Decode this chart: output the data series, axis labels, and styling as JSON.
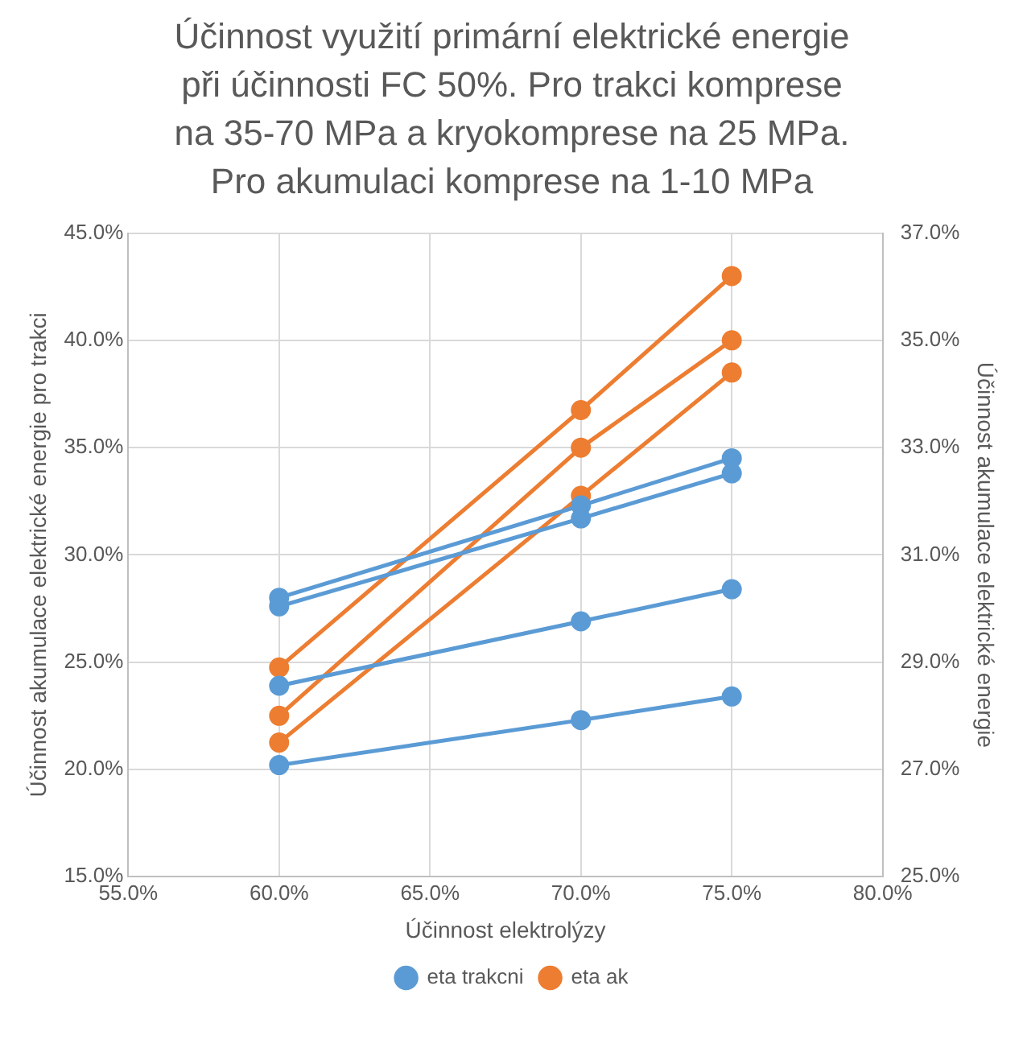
{
  "chart_data": {
    "type": "line",
    "title": "Účinnost využití primární elektrické energie při účinnosti FC 50%. Pro trakci komprese na 35-70 MPa a kryokomprese na 25 MPa. Pro akumulaci komprese na 1-10 MPa",
    "xlabel": "Účinnost elektrolýzy",
    "ylabel": "Účinnost akumulace elektrické energie pro trakci",
    "y2label": "Účinnost akumulace elektrické energie",
    "x": [
      60,
      70,
      75
    ],
    "series": [
      {
        "name": "eta trakcni",
        "color": "#5b9bd5",
        "values": [
          28.0,
          32.3,
          34.5
        ]
      },
      {
        "color": "#5b9bd5",
        "values": [
          27.6,
          31.7,
          33.8
        ]
      },
      {
        "color": "#5b9bd5",
        "values": [
          23.9,
          26.9,
          28.4
        ]
      },
      {
        "color": "#5b9bd5",
        "values": [
          20.2,
          22.3,
          23.4
        ]
      },
      {
        "name": "eta ak",
        "color": "#ed7d31",
        "axis": "y2",
        "values": [
          28.9,
          33.7,
          36.2
        ]
      },
      {
        "color": "#ed7d31",
        "axis": "y2",
        "values": [
          28.0,
          33.0,
          35.0
        ]
      },
      {
        "color": "#ed7d31",
        "axis": "y2",
        "values": [
          27.5,
          32.1,
          34.4
        ]
      }
    ],
    "xlim": [
      55,
      80
    ],
    "xticks": [
      {
        "value": 55,
        "label": "55.0%"
      },
      {
        "value": 60,
        "label": "60.0%"
      },
      {
        "value": 65,
        "label": "65.0%"
      },
      {
        "value": 70,
        "label": "70.0%"
      },
      {
        "value": 75,
        "label": "75.0%"
      },
      {
        "value": 80,
        "label": "80.0%"
      }
    ],
    "ylim": [
      15,
      45
    ],
    "yticks": [
      {
        "value": 15,
        "label": "15.0%"
      },
      {
        "value": 20,
        "label": "20.0%"
      },
      {
        "value": 25,
        "label": "25.0%"
      },
      {
        "value": 30,
        "label": "30.0%"
      },
      {
        "value": 35,
        "label": "35.0%"
      },
      {
        "value": 40,
        "label": "40.0%"
      },
      {
        "value": 45,
        "label": "45.0%"
      }
    ],
    "y2lim": [
      25,
      37
    ],
    "y2ticks": [
      {
        "value": 25,
        "label": "25.0%"
      },
      {
        "value": 27,
        "label": "27.0%"
      },
      {
        "value": 29,
        "label": "29.0%"
      },
      {
        "value": 31,
        "label": "31.0%"
      },
      {
        "value": 33,
        "label": "33.0%"
      },
      {
        "value": 35,
        "label": "35.0%"
      },
      {
        "value": 37,
        "label": "37.0%"
      }
    ],
    "grid": true,
    "legend": "bottom",
    "marker": "circle",
    "line_style": "solid"
  }
}
